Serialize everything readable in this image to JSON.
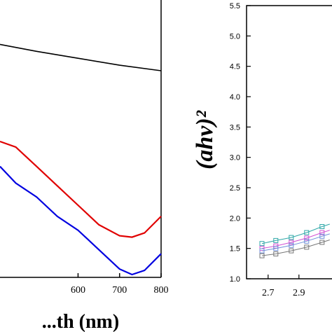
{
  "chart_data": [
    {
      "type": "line",
      "title": "",
      "xlabel": "...th (nm)",
      "ylabel": "",
      "xlim": [
        412,
        800
      ],
      "ylim": [
        0,
        1
      ],
      "x_ticks": [
        600,
        700,
        800
      ],
      "grid": false,
      "series": [
        {
          "color": "#000000",
          "x": [
            412,
            500,
            600,
            700,
            800
          ],
          "y": [
            0.84,
            0.815,
            0.79,
            0.765,
            0.745
          ]
        },
        {
          "color": "#e00000",
          "x": [
            412,
            450,
            500,
            550,
            600,
            650,
            700,
            730,
            760,
            800
          ],
          "y": [
            0.49,
            0.47,
            0.4,
            0.33,
            0.26,
            0.19,
            0.15,
            0.145,
            0.16,
            0.22
          ]
        },
        {
          "color": "#0000e0",
          "x": [
            412,
            450,
            500,
            550,
            600,
            650,
            700,
            730,
            760,
            800
          ],
          "y": [
            0.4,
            0.34,
            0.29,
            0.22,
            0.17,
            0.1,
            0.03,
            0.01,
            0.025,
            0.085
          ]
        }
      ]
    },
    {
      "type": "scatter",
      "title": "",
      "xlabel": "",
      "ylabel": "(ahv)²",
      "xlim": [
        2.56,
        3.1
      ],
      "ylim": [
        1.0,
        5.5
      ],
      "x_ticks": [
        "2.7",
        "2.9"
      ],
      "y_ticks": [
        "1.0",
        "1.5",
        "2.0",
        "2.5",
        "3.0",
        "3.5",
        "4.0",
        "4.5",
        "5.0",
        "5.5"
      ],
      "grid": false,
      "series": [
        {
          "color": "#2fa8a8",
          "x": [
            2.66,
            2.75,
            2.85,
            2.95,
            3.05,
            3.1
          ],
          "y": [
            1.58,
            1.63,
            1.68,
            1.76,
            1.86,
            1.9
          ]
        },
        {
          "color": "#d24fd2",
          "x": [
            2.66,
            2.75,
            2.85,
            2.95,
            3.05,
            3.1
          ],
          "y": [
            1.5,
            1.54,
            1.6,
            1.67,
            1.76,
            1.8
          ]
        },
        {
          "color": "#6f8fd8",
          "x": [
            2.66,
            2.75,
            2.85,
            2.95,
            3.05,
            3.1
          ],
          "y": [
            1.46,
            1.5,
            1.55,
            1.62,
            1.7,
            1.74
          ]
        },
        {
          "color": "#777777",
          "x": [
            2.66,
            2.75,
            2.85,
            2.95,
            3.05,
            3.1
          ],
          "y": [
            1.38,
            1.41,
            1.46,
            1.52,
            1.6,
            1.64
          ]
        }
      ]
    }
  ]
}
